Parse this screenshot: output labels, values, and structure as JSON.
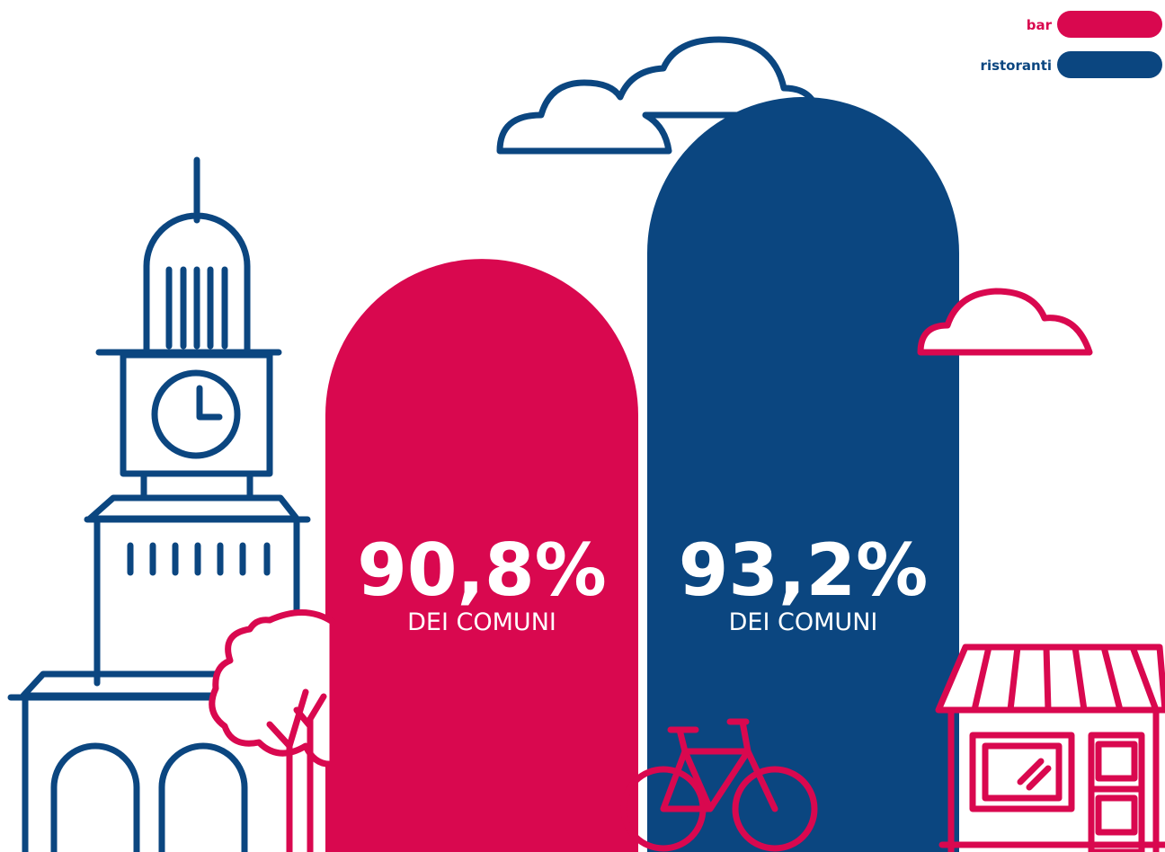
{
  "chart_data": {
    "type": "bar",
    "series": [
      {
        "name": "bar",
        "color": "#d9084f",
        "values": [
          90.8
        ],
        "value_labels": [
          "90,8%"
        ]
      },
      {
        "name": "ristoranti",
        "color": "#0b4680",
        "values": [
          93.2
        ],
        "value_labels": [
          "93,2%"
        ]
      }
    ],
    "value_caption": "DEI COMUNI",
    "ylim": [
      82,
      94
    ],
    "legend": "top-right"
  }
}
